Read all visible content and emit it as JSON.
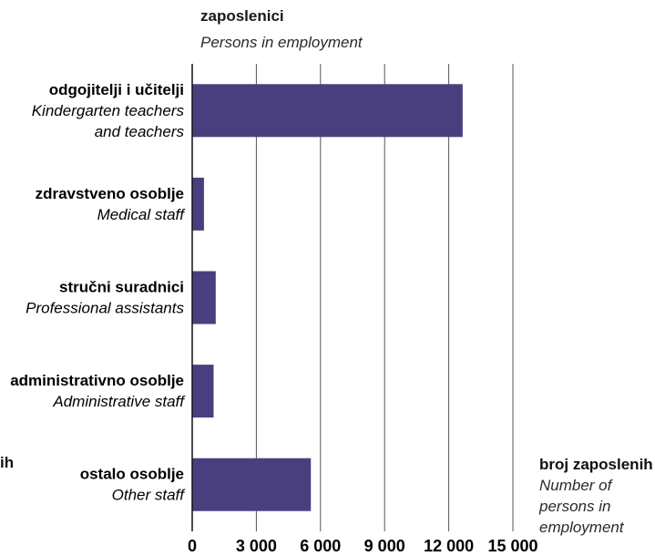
{
  "chart_data": {
    "type": "bar",
    "orientation": "horizontal",
    "title": "zaposlenici",
    "subtitle": "Persons in employment",
    "xlabel": "broj zaposlenih",
    "xlabel_sub": [
      "Number of",
      "persons in",
      "employment"
    ],
    "left_cutoff_fragment": "ih",
    "categories": [
      {
        "main": "odgojitelji i učitelji",
        "sub": [
          "Kindergarten teachers",
          "and teachers"
        ]
      },
      {
        "main": "zdravstveno osoblje",
        "sub": [
          "Medical staff"
        ]
      },
      {
        "main": "stručni suradnici",
        "sub": [
          "Professional assistants"
        ]
      },
      {
        "main": "administrativno osoblje",
        "sub": [
          "Administrative staff"
        ]
      },
      {
        "main": "ostalo osoblje",
        "sub": [
          "Other staff"
        ]
      }
    ],
    "values": [
      12650,
      550,
      1100,
      1000,
      5550
    ],
    "xlim": [
      0,
      15000
    ],
    "xticks": [
      0,
      3000,
      6000,
      9000,
      12000,
      15000
    ],
    "xtick_labels": [
      "0",
      "3 000",
      "6 000",
      "9 000",
      "12 000",
      "15 000"
    ],
    "grid": true,
    "bar_color": "#4a3f7e"
  }
}
